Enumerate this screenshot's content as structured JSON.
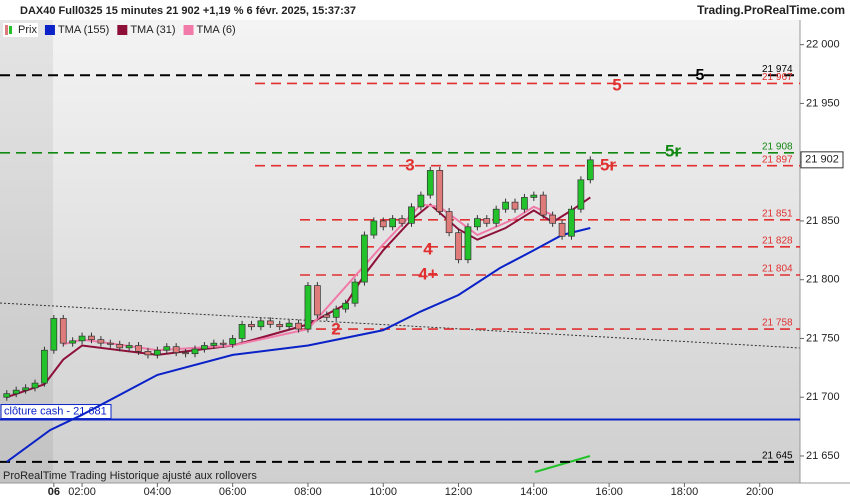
{
  "chart_data": {
    "type": "candlestick",
    "title": "DAX40 Full0325 15 minutes 21 902 +1,19 % 6 févr. 2025, 15:37:37",
    "source": "Trading.ProRealTime.com",
    "footer": "ProRealTime Trading Historique ajusté aux rollovers",
    "candles_name": "Prix",
    "up_color": "#22c32a",
    "down_color": "#e07b7b",
    "x": [
      0,
      0.25,
      0.5,
      0.75,
      1,
      1.25,
      1.5,
      1.75,
      2,
      2.25,
      2.5,
      2.75,
      3,
      3.25,
      3.5,
      3.75,
      4,
      4.25,
      4.5,
      4.75,
      5,
      5.25,
      5.5,
      5.75,
      6,
      6.25,
      6.5,
      6.75,
      7,
      7.25,
      7.5,
      7.75,
      8,
      8.25,
      8.5,
      8.75,
      9,
      9.25,
      9.5,
      9.75,
      10,
      10.25,
      10.5,
      10.75,
      11,
      11.25,
      11.5,
      11.75,
      12,
      12.25,
      12.5,
      12.75,
      13,
      13.25,
      13.5,
      13.75,
      14,
      14.25,
      14.5,
      14.75,
      15,
      15.25,
      15.5
    ],
    "candles": [
      [
        21700,
        21706,
        21697,
        21703
      ],
      [
        21703,
        21709,
        21700,
        21706
      ],
      [
        21706,
        21711,
        21703,
        21708
      ],
      [
        21708,
        21715,
        21705,
        21712
      ],
      [
        21712,
        21743,
        21709,
        21740
      ],
      [
        21740,
        21770,
        21737,
        21767
      ],
      [
        21767,
        21770,
        21743,
        21746
      ],
      [
        21746,
        21751,
        21743,
        21748
      ],
      [
        21748,
        21755,
        21745,
        21752
      ],
      [
        21752,
        21755,
        21746,
        21749
      ],
      [
        21749,
        21752,
        21743,
        21746
      ],
      [
        21746,
        21749,
        21742,
        21745
      ],
      [
        21745,
        21748,
        21739,
        21742
      ],
      [
        21742,
        21747,
        21739,
        21744
      ],
      [
        21744,
        21747,
        21736,
        21739
      ],
      [
        21739,
        21742,
        21733,
        21736
      ],
      [
        21736,
        21743,
        21733,
        21740
      ],
      [
        21740,
        21746,
        21737,
        21743
      ],
      [
        21743,
        21746,
        21735,
        21738
      ],
      [
        21738,
        21741,
        21734,
        21737
      ],
      [
        21737,
        21744,
        21734,
        21741
      ],
      [
        21741,
        21747,
        21738,
        21744
      ],
      [
        21744,
        21749,
        21741,
        21746
      ],
      [
        21746,
        21749,
        21742,
        21745
      ],
      [
        21745,
        21753,
        21742,
        21750
      ],
      [
        21750,
        21765,
        21747,
        21762
      ],
      [
        21762,
        21765,
        21757,
        21760
      ],
      [
        21760,
        21768,
        21757,
        21765
      ],
      [
        21765,
        21768,
        21759,
        21762
      ],
      [
        21762,
        21765,
        21757,
        21760
      ],
      [
        21760,
        21766,
        21757,
        21763
      ],
      [
        21763,
        21766,
        21755,
        21758
      ],
      [
        21758,
        21798,
        21755,
        21795
      ],
      [
        21795,
        21798,
        21767,
        21770
      ],
      [
        21770,
        21773,
        21765,
        21768
      ],
      [
        21768,
        21778,
        21765,
        21775
      ],
      [
        21775,
        21783,
        21772,
        21780
      ],
      [
        21780,
        21801,
        21777,
        21798
      ],
      [
        21798,
        21841,
        21795,
        21838
      ],
      [
        21838,
        21853,
        21835,
        21850
      ],
      [
        21850,
        21853,
        21842,
        21845
      ],
      [
        21845,
        21855,
        21842,
        21852
      ],
      [
        21852,
        21855,
        21845,
        21848
      ],
      [
        21848,
        21865,
        21845,
        21862
      ],
      [
        21862,
        21875,
        21859,
        21872
      ],
      [
        21872,
        21896,
        21869,
        21893
      ],
      [
        21893,
        21896,
        21855,
        21858
      ],
      [
        21858,
        21861,
        21837,
        21840
      ],
      [
        21840,
        21843,
        21814,
        21817
      ],
      [
        21817,
        21848,
        21814,
        21845
      ],
      [
        21845,
        21855,
        21842,
        21852
      ],
      [
        21852,
        21855,
        21845,
        21848
      ],
      [
        21848,
        21863,
        21845,
        21860
      ],
      [
        21860,
        21869,
        21857,
        21866
      ],
      [
        21866,
        21869,
        21857,
        21860
      ],
      [
        21860,
        21873,
        21857,
        21870
      ],
      [
        21870,
        21875,
        21867,
        21872
      ],
      [
        21872,
        21875,
        21852,
        21855
      ],
      [
        21855,
        21858,
        21845,
        21848
      ],
      [
        21848,
        21851,
        21834,
        21837
      ],
      [
        21837,
        21863,
        21834,
        21860
      ],
      [
        21860,
        21888,
        21857,
        21885
      ],
      [
        21885,
        21905,
        21882,
        21902
      ]
    ],
    "series": [
      {
        "name": "TMA (155)",
        "color": "#0a22c8",
        "x": [
          0,
          1.15,
          2,
          4,
          6,
          8,
          10,
          11,
          12,
          13.1,
          14,
          14.75,
          15.5
        ],
        "values": [
          21645,
          21672,
          21685,
          21719,
          21736,
          21744,
          21757,
          21773,
          21787,
          21810,
          21825,
          21838,
          21844
        ]
      },
      {
        "name": "TMA (31)",
        "color": "#8e1038",
        "x": [
          0,
          1,
          1.5,
          2,
          4,
          6,
          8,
          9,
          9.5,
          10,
          10.75,
          11.25,
          12,
          12.5,
          13.25,
          14,
          14.5,
          15,
          15.5
        ],
        "values": [
          21700,
          21711,
          21732,
          21744,
          21736,
          21744,
          21762,
          21779,
          21804,
          21825,
          21851,
          21864,
          21843,
          21834,
          21844,
          21859,
          21849,
          21859,
          21870
        ]
      },
      {
        "name": "TMA (6)",
        "color": "#f27aa8",
        "x": [
          1.5,
          2,
          2.5,
          4,
          6,
          8,
          10,
          11,
          11.5,
          12.5,
          13.5,
          14,
          14.5
        ],
        "values": [
          21745,
          21749,
          21747,
          21740,
          21744,
          21758,
          21830,
          21864,
          21862,
          21838,
          21852,
          21862,
          21855
        ]
      }
    ],
    "levels": [
      {
        "value": 21974,
        "label": "21 974",
        "color": "#000000"
      },
      {
        "value": 21967,
        "label": "21 967",
        "color": "#e03030"
      },
      {
        "value": 21908,
        "label": "21 908",
        "color": "#118811"
      },
      {
        "value": 21897,
        "label": "21 897",
        "color": "#e03030"
      },
      {
        "value": 21851,
        "label": "21 851",
        "color": "#e03030"
      },
      {
        "value": 21828,
        "label": "21 828",
        "color": "#e03030"
      },
      {
        "value": 21804,
        "label": "21 804",
        "color": "#e03030"
      },
      {
        "value": 21758,
        "label": "21 758",
        "color": "#e03030"
      },
      {
        "value": 21645,
        "label": "21 645",
        "color": "#000000"
      }
    ],
    "close_line": {
      "value": 21681,
      "label": "clôture cash - 21 681",
      "color": "#0a22c8"
    },
    "last_price": {
      "value": 21902,
      "label": "21 902"
    },
    "annotations": [
      {
        "text": "5",
        "color": "#000000"
      },
      {
        "text": "5",
        "color": "#e03030"
      },
      {
        "text": "5r",
        "color": "#118811"
      },
      {
        "text": "5r",
        "color": "#e03030"
      },
      {
        "text": "3",
        "color": "#e03030"
      },
      {
        "text": "4",
        "color": "#e03030"
      },
      {
        "text": "4+",
        "color": "#e03030"
      },
      {
        "text": "2",
        "color": "#e03030"
      }
    ],
    "xlim": [
      -0.18,
      21.07
    ],
    "xticks": [
      {
        "value": 1.25,
        "label": "06"
      },
      {
        "value": 2,
        "label": "02:00"
      },
      {
        "value": 4,
        "label": "04:00"
      },
      {
        "value": 6,
        "label": "06:00"
      },
      {
        "value": 8,
        "label": "08:00"
      },
      {
        "value": 10,
        "label": "10:00"
      },
      {
        "value": 12,
        "label": "12:00"
      },
      {
        "value": 14,
        "label": "14:00"
      },
      {
        "value": 16,
        "label": "16:00"
      },
      {
        "value": 18,
        "label": "18:00"
      },
      {
        "value": 20,
        "label": "20:00"
      }
    ],
    "ylim": [
      21627,
      22021
    ],
    "yticks": [
      {
        "value": 22000,
        "label": "22 000"
      },
      {
        "value": 21950,
        "label": "21 950"
      },
      {
        "value": 21900,
        "label": "21 900"
      },
      {
        "value": 21850,
        "label": "21 850"
      },
      {
        "value": 21800,
        "label": "21 800"
      },
      {
        "value": 21750,
        "label": "21 750"
      },
      {
        "value": 21700,
        "label": "21 700"
      },
      {
        "value": 21650,
        "label": "21 650"
      }
    ]
  }
}
